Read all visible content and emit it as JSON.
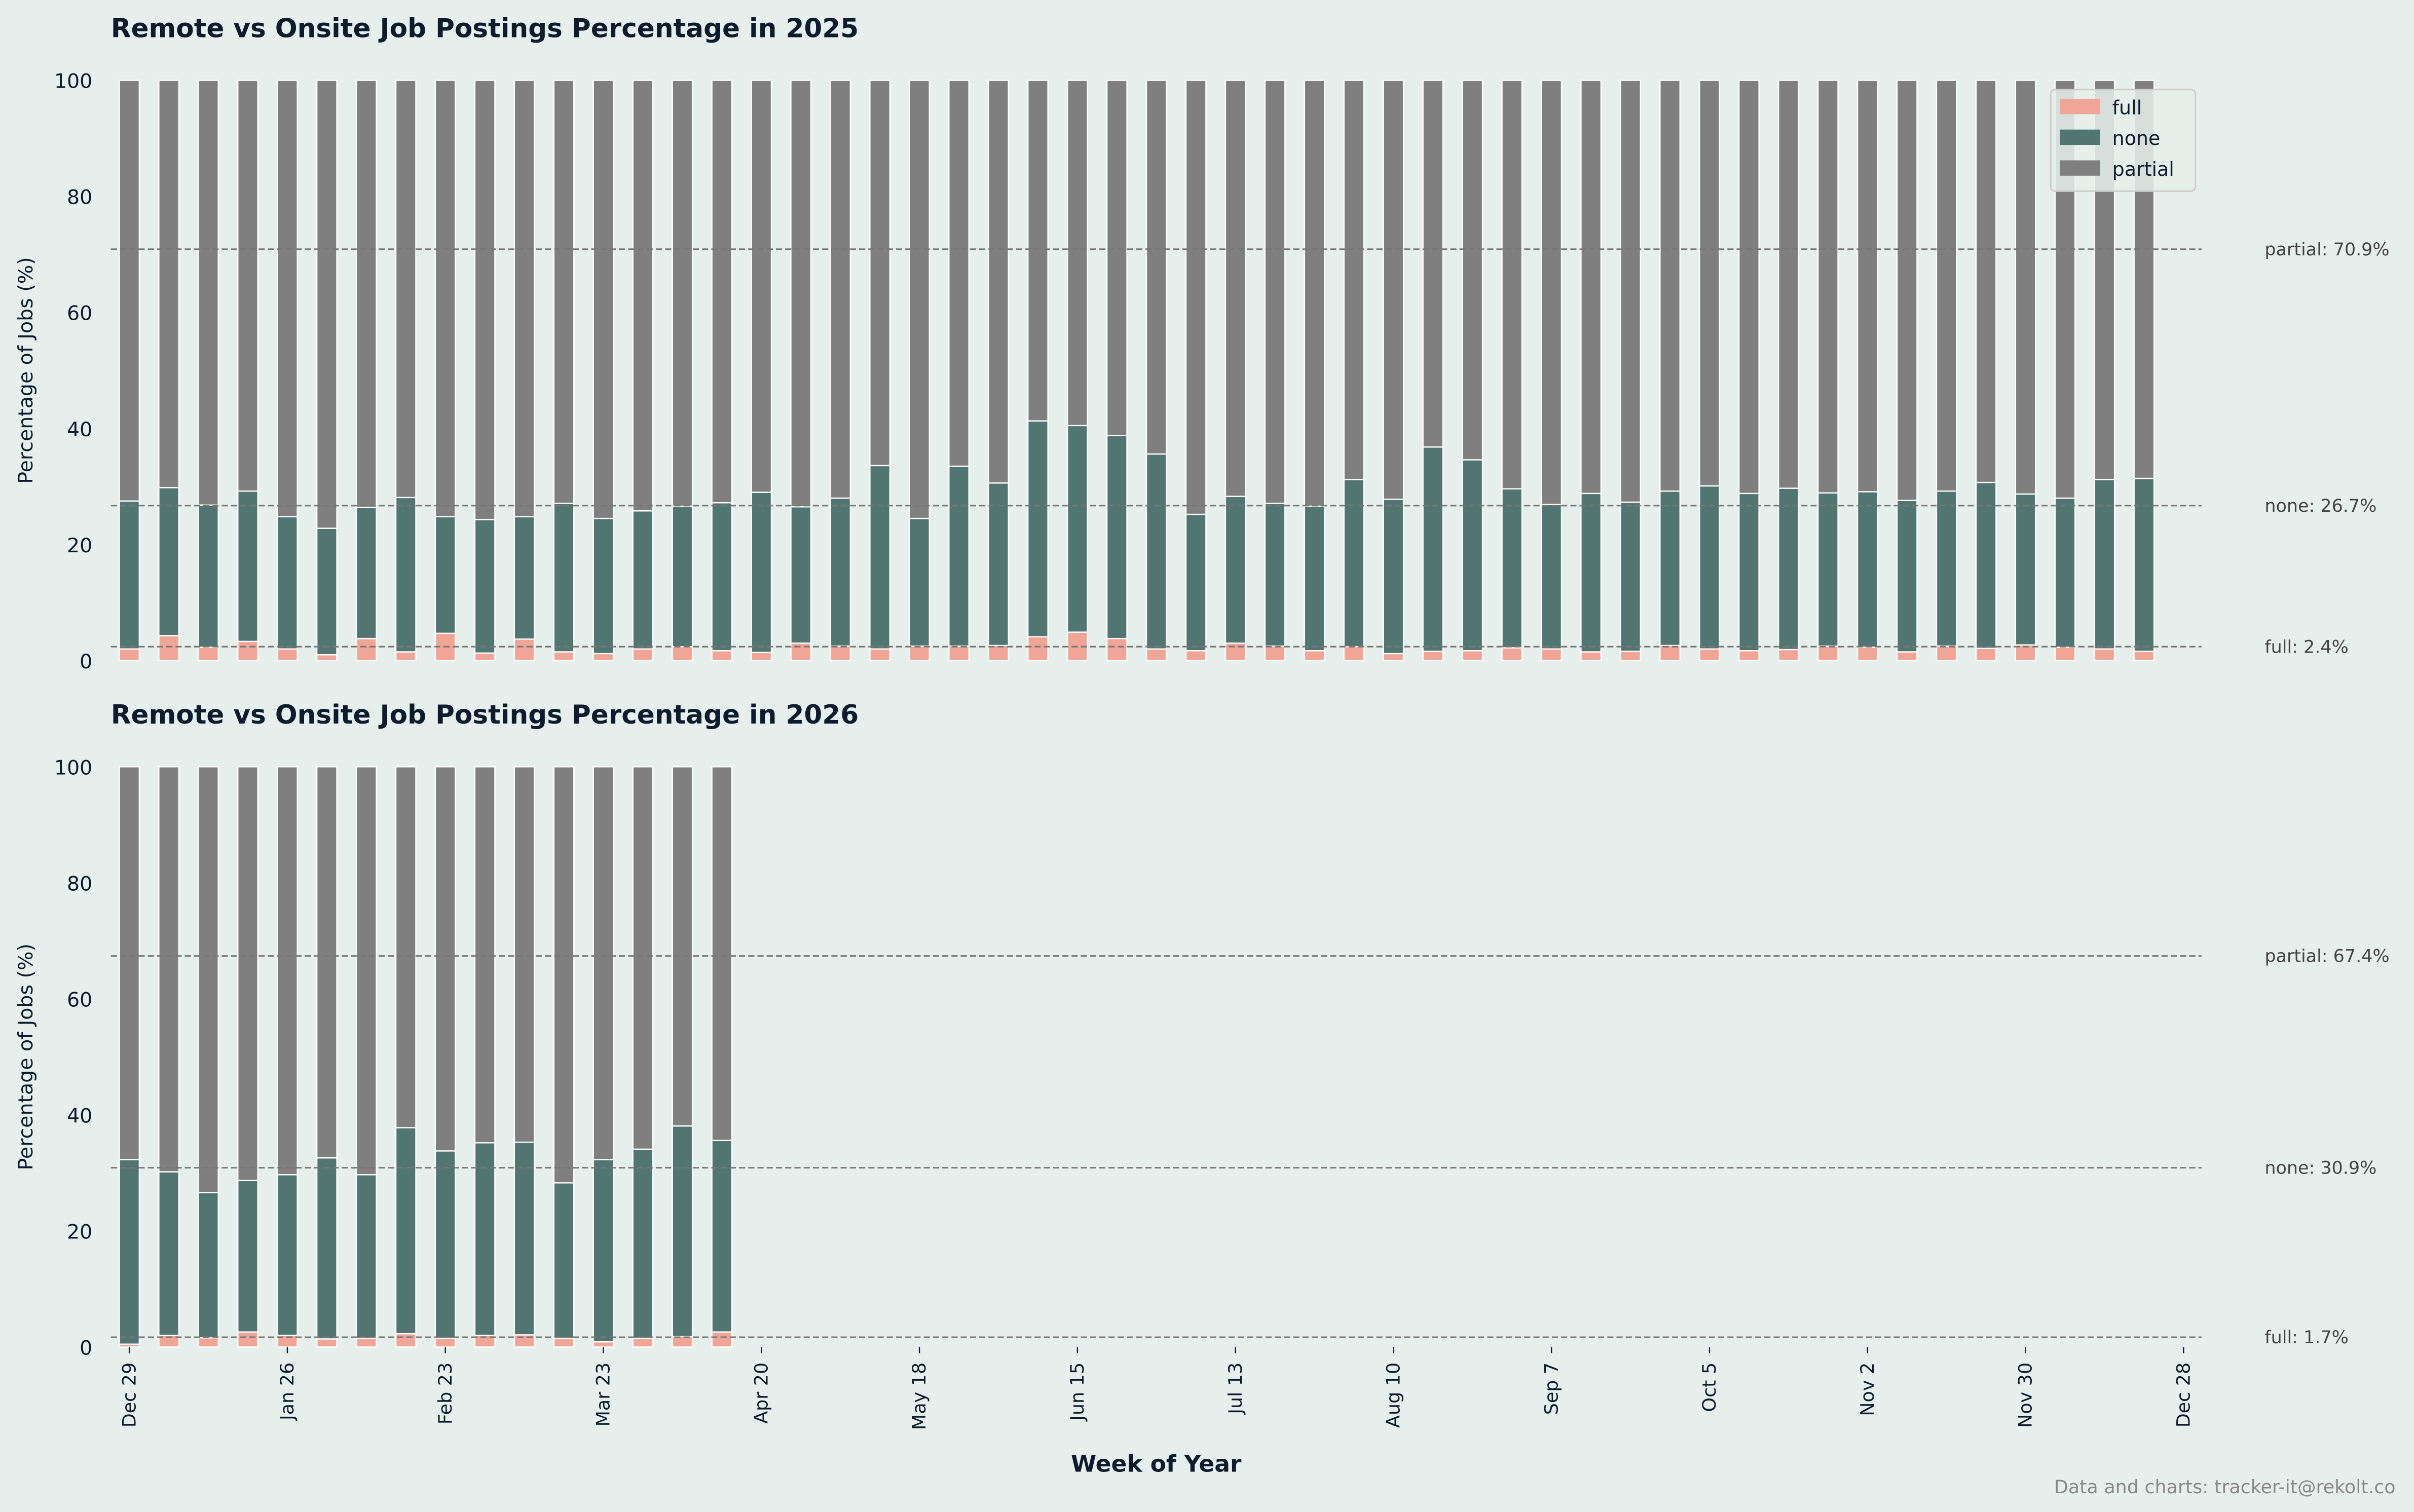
{
  "colors": {
    "full": "#f0a597",
    "none": "#517571",
    "partial": "#7f7f7f",
    "background": "#e6efeb",
    "reference_line": "#777777"
  },
  "footer": "Data and charts: tracker-it@rekolt.co",
  "chart_data": [
    {
      "type": "bar",
      "stacked": true,
      "title": "Remote vs Onsite Job Postings Percentage in 2025",
      "ylabel": "Percentage of Jobs (%)",
      "xlabel": "",
      "ylim": [
        0,
        100
      ],
      "yticks": [
        "0",
        "20",
        "40",
        "60",
        "80",
        "100"
      ],
      "legend": {
        "placement": "top-right",
        "entries": [
          "full",
          "none",
          "partial"
        ]
      },
      "series": [
        {
          "name": "full",
          "values": [
            2.0,
            4.3,
            2.3,
            3.3,
            2.0,
            1.0,
            3.8,
            1.5,
            4.7,
            1.3,
            3.7,
            1.5,
            1.2,
            2.0,
            2.4,
            1.7,
            1.4,
            3.0,
            2.5,
            2.0,
            2.5,
            2.5,
            2.6,
            4.1,
            4.9,
            3.8,
            2.0,
            1.7,
            3.0,
            2.5,
            1.7,
            2.4,
            1.2,
            1.6,
            1.7,
            2.2,
            2.0,
            1.5,
            1.6,
            2.6,
            2.0,
            1.7,
            1.9,
            2.5,
            2.3,
            1.5,
            2.5,
            2.1,
            2.7,
            2.3,
            2.0,
            1.6
          ]
        },
        {
          "name": "none",
          "values": [
            25.5,
            25.5,
            24.5,
            25.9,
            22.8,
            21.8,
            22.6,
            26.6,
            20.1,
            23.0,
            21.1,
            25.6,
            23.3,
            23.8,
            24.2,
            25.5,
            27.6,
            23.5,
            25.5,
            31.6,
            22.0,
            31.0,
            28.0,
            37.2,
            35.6,
            35.0,
            33.6,
            23.5,
            25.3,
            24.6,
            24.9,
            28.8,
            26.6,
            35.2,
            32.9,
            27.4,
            24.9,
            27.3,
            25.7,
            26.6,
            28.1,
            27.1,
            27.8,
            26.4,
            26.8,
            26.1,
            26.7,
            28.6,
            26.0,
            25.7,
            29.2,
            29.8
          ]
        },
        {
          "name": "partial",
          "values": [
            72.5,
            70.2,
            73.2,
            70.8,
            75.2,
            77.2,
            73.6,
            71.9,
            75.2,
            75.7,
            75.2,
            72.9,
            75.5,
            74.2,
            73.4,
            72.8,
            71.0,
            73.5,
            72.0,
            66.4,
            75.5,
            66.5,
            69.4,
            58.7,
            59.5,
            61.2,
            64.4,
            74.8,
            71.7,
            72.9,
            73.4,
            68.8,
            72.2,
            63.2,
            65.4,
            70.4,
            73.1,
            71.2,
            72.7,
            70.8,
            69.9,
            71.2,
            70.3,
            71.1,
            70.9,
            72.4,
            70.8,
            69.3,
            71.3,
            72.0,
            68.8,
            68.6
          ]
        }
      ],
      "reference_lines": [
        {
          "series": "partial",
          "value": 70.9,
          "label": "partial: 70.9%"
        },
        {
          "series": "none",
          "value": 26.7,
          "label": "none: 26.7%"
        },
        {
          "series": "full",
          "value": 2.4,
          "label": "full: 2.4%"
        }
      ]
    },
    {
      "type": "bar",
      "stacked": true,
      "title": "Remote vs Onsite Job Postings Percentage in 2026",
      "ylabel": "Percentage of Jobs (%)",
      "xlabel": "Week of Year",
      "ylim": [
        0,
        100
      ],
      "yticks": [
        "0",
        "20",
        "40",
        "60",
        "80",
        "100"
      ],
      "xticks": [
        "Dec 29",
        "Jan 26",
        "Feb 23",
        "Mar 23",
        "Apr 20",
        "May 18",
        "Jun 15",
        "Jul 13",
        "Aug 10",
        "Sep 7",
        "Oct 5",
        "Nov 2",
        "Nov 30",
        "Dec 28"
      ],
      "series": [
        {
          "name": "full",
          "values": [
            0.5,
            2.0,
            1.6,
            2.6,
            2.0,
            1.4,
            1.5,
            2.3,
            1.5,
            2.0,
            2.1,
            1.5,
            0.9,
            1.5,
            1.8,
            2.6
          ]
        },
        {
          "name": "none",
          "values": [
            31.8,
            28.2,
            25.0,
            26.1,
            27.7,
            31.2,
            28.2,
            35.5,
            32.3,
            33.2,
            33.2,
            26.8,
            31.4,
            32.6,
            36.3,
            33.0
          ]
        },
        {
          "name": "partial",
          "values": [
            67.7,
            69.8,
            73.4,
            71.3,
            70.3,
            67.4,
            70.3,
            62.2,
            66.2,
            64.8,
            64.7,
            71.7,
            67.7,
            65.9,
            61.9,
            64.4
          ]
        }
      ],
      "reference_lines": [
        {
          "series": "partial",
          "value": 67.4,
          "label": "partial: 67.4%"
        },
        {
          "series": "none",
          "value": 30.9,
          "label": "none: 30.9%"
        },
        {
          "series": "full",
          "value": 1.7,
          "label": "full: 1.7%"
        }
      ]
    }
  ]
}
